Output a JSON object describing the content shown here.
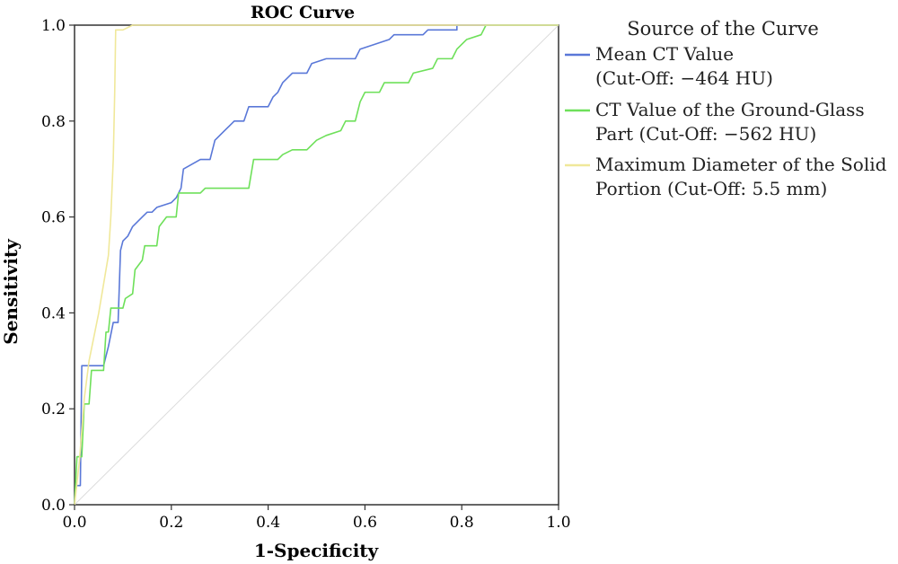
{
  "chart_data": {
    "type": "line",
    "title": "ROC Curve",
    "xlabel": "1-Specificity",
    "ylabel": "Sensitivity",
    "xlim": [
      0,
      1
    ],
    "ylim": [
      0,
      1
    ],
    "x_ticks": [
      "0.0",
      "0.2",
      "0.4",
      "0.6",
      "0.8",
      "1.0"
    ],
    "y_ticks": [
      "0.0",
      "0.2",
      "0.4",
      "0.6",
      "0.8",
      "1.0"
    ],
    "grid": false,
    "legend": {
      "title": "Source of the Curve",
      "placement": "right"
    },
    "series": [
      {
        "name": "Mean CT Value (Cut-Off: −464 HU)",
        "legend_lines": [
          "Mean CT Value",
          "(Cut-Off: −464 HU)"
        ],
        "color": "#5a78d8",
        "points": [
          [
            0,
            0
          ],
          [
            0.003,
            0.04
          ],
          [
            0.012,
            0.04
          ],
          [
            0.015,
            0.29
          ],
          [
            0.06,
            0.29
          ],
          [
            0.07,
            0.33
          ],
          [
            0.08,
            0.38
          ],
          [
            0.09,
            0.38
          ],
          [
            0.095,
            0.53
          ],
          [
            0.1,
            0.55
          ],
          [
            0.11,
            0.56
          ],
          [
            0.12,
            0.58
          ],
          [
            0.13,
            0.59
          ],
          [
            0.14,
            0.6
          ],
          [
            0.15,
            0.61
          ],
          [
            0.16,
            0.61
          ],
          [
            0.17,
            0.62
          ],
          [
            0.2,
            0.63
          ],
          [
            0.21,
            0.64
          ],
          [
            0.22,
            0.66
          ],
          [
            0.225,
            0.7
          ],
          [
            0.26,
            0.72
          ],
          [
            0.28,
            0.72
          ],
          [
            0.29,
            0.76
          ],
          [
            0.3,
            0.77
          ],
          [
            0.31,
            0.78
          ],
          [
            0.32,
            0.79
          ],
          [
            0.33,
            0.8
          ],
          [
            0.35,
            0.8
          ],
          [
            0.36,
            0.83
          ],
          [
            0.4,
            0.83
          ],
          [
            0.41,
            0.85
          ],
          [
            0.42,
            0.86
          ],
          [
            0.43,
            0.88
          ],
          [
            0.45,
            0.9
          ],
          [
            0.48,
            0.9
          ],
          [
            0.49,
            0.92
          ],
          [
            0.52,
            0.93
          ],
          [
            0.58,
            0.93
          ],
          [
            0.59,
            0.95
          ],
          [
            0.62,
            0.96
          ],
          [
            0.65,
            0.97
          ],
          [
            0.66,
            0.98
          ],
          [
            0.72,
            0.98
          ],
          [
            0.73,
            0.99
          ],
          [
            0.79,
            0.99
          ],
          [
            0.79,
            1
          ],
          [
            1,
            1
          ]
        ]
      },
      {
        "name": "CT Value of the Ground-Glass Part (Cut-Off: −562 HU)",
        "legend_lines": [
          "CT Value of the Ground-Glass",
          "Part (Cut-Off: −562 HU)"
        ],
        "color": "#6ee05a",
        "points": [
          [
            0,
            0
          ],
          [
            0.005,
            0.1
          ],
          [
            0.015,
            0.1
          ],
          [
            0.02,
            0.21
          ],
          [
            0.03,
            0.21
          ],
          [
            0.035,
            0.28
          ],
          [
            0.06,
            0.28
          ],
          [
            0.065,
            0.36
          ],
          [
            0.07,
            0.36
          ],
          [
            0.075,
            0.41
          ],
          [
            0.1,
            0.41
          ],
          [
            0.105,
            0.43
          ],
          [
            0.12,
            0.44
          ],
          [
            0.125,
            0.49
          ],
          [
            0.14,
            0.51
          ],
          [
            0.145,
            0.54
          ],
          [
            0.17,
            0.54
          ],
          [
            0.175,
            0.58
          ],
          [
            0.19,
            0.6
          ],
          [
            0.21,
            0.6
          ],
          [
            0.215,
            0.65
          ],
          [
            0.24,
            0.65
          ],
          [
            0.26,
            0.65
          ],
          [
            0.27,
            0.66
          ],
          [
            0.36,
            0.66
          ],
          [
            0.37,
            0.72
          ],
          [
            0.42,
            0.72
          ],
          [
            0.43,
            0.73
          ],
          [
            0.45,
            0.74
          ],
          [
            0.48,
            0.74
          ],
          [
            0.5,
            0.76
          ],
          [
            0.52,
            0.77
          ],
          [
            0.55,
            0.78
          ],
          [
            0.56,
            0.8
          ],
          [
            0.58,
            0.8
          ],
          [
            0.59,
            0.84
          ],
          [
            0.6,
            0.86
          ],
          [
            0.63,
            0.86
          ],
          [
            0.64,
            0.88
          ],
          [
            0.69,
            0.88
          ],
          [
            0.7,
            0.9
          ],
          [
            0.74,
            0.91
          ],
          [
            0.75,
            0.93
          ],
          [
            0.78,
            0.93
          ],
          [
            0.79,
            0.95
          ],
          [
            0.81,
            0.97
          ],
          [
            0.84,
            0.98
          ],
          [
            0.85,
            1
          ],
          [
            1,
            1
          ]
        ]
      },
      {
        "name": "Maximum Diameter of the Solid Portion (Cut-Off: 5.5 mm)",
        "legend_lines": [
          "Maximum Diameter of the Solid",
          "Portion (Cut-Off: 5.5 mm)"
        ],
        "color": "#f0e89a",
        "points": [
          [
            0,
            0
          ],
          [
            0.01,
            0.09
          ],
          [
            0.02,
            0.22
          ],
          [
            0.03,
            0.3
          ],
          [
            0.04,
            0.35
          ],
          [
            0.05,
            0.4
          ],
          [
            0.06,
            0.46
          ],
          [
            0.07,
            0.52
          ],
          [
            0.075,
            0.6
          ],
          [
            0.08,
            0.72
          ],
          [
            0.083,
            0.86
          ],
          [
            0.085,
            0.99
          ],
          [
            0.1,
            0.99
          ],
          [
            0.12,
            1
          ],
          [
            1,
            1
          ]
        ]
      }
    ]
  }
}
